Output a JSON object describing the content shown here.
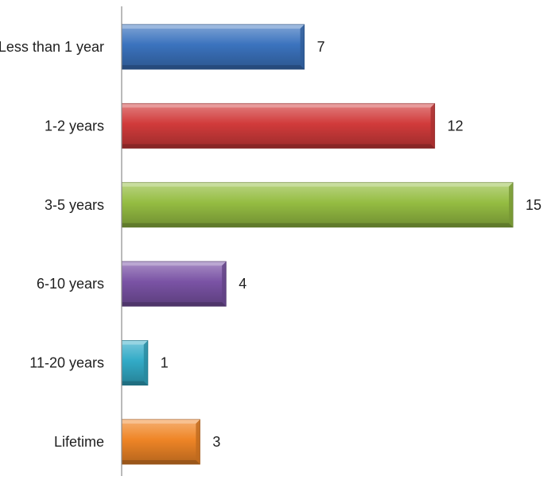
{
  "chart_data": {
    "type": "bar",
    "orientation": "horizontal",
    "categories": [
      "Less than 1 year",
      "1-2 years",
      "3-5 years",
      "6-10 years",
      "11-20 years",
      "Lifetime"
    ],
    "values": [
      7,
      12,
      15,
      4,
      1,
      3
    ],
    "xlim": [
      0,
      15
    ],
    "grid": false,
    "legend": "none",
    "data_labels": true,
    "colors": [
      "#3b73be",
      "#d13b3b",
      "#95bd42",
      "#7a53a5",
      "#32abc7",
      "#ef8526"
    ]
  }
}
